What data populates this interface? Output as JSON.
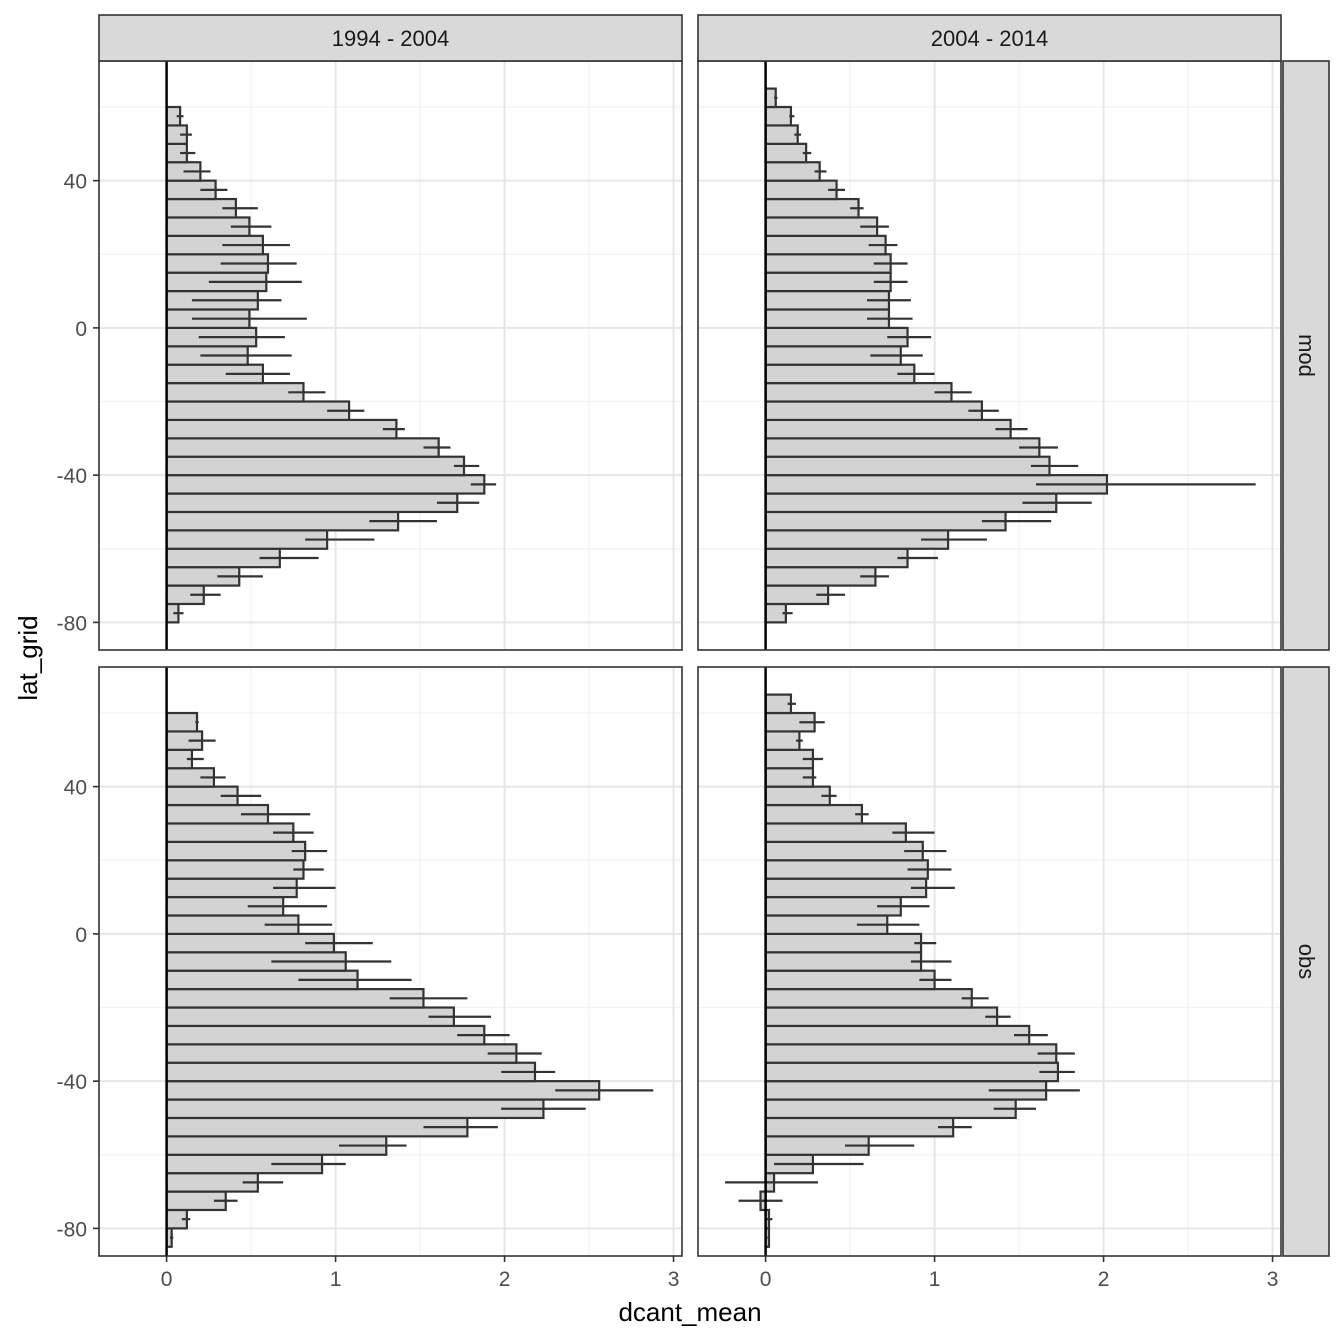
{
  "chart_data": {
    "type": "bar",
    "orientation": "horizontal",
    "facet_columns": [
      "1994 - 2004",
      "2004 - 2014"
    ],
    "facet_rows": [
      "mod",
      "obs"
    ],
    "xlabel": "dcant_mean",
    "ylabel": "lat_grid",
    "xlim": [
      -0.4,
      3.05
    ],
    "ylim": [
      -87.5,
      72.5
    ],
    "xticks": [
      "0",
      "1",
      "2",
      "3"
    ],
    "yticks": [
      "-80",
      "-40",
      "0",
      "40"
    ],
    "grid": true,
    "bar_fill": "#d3d3d3",
    "bar_outline": "#333333",
    "lat": [
      -82.5,
      -77.5,
      -72.5,
      -67.5,
      -62.5,
      -57.5,
      -52.5,
      -47.5,
      -42.5,
      -37.5,
      -32.5,
      -27.5,
      -22.5,
      -17.5,
      -12.5,
      -7.5,
      -2.5,
      2.5,
      7.5,
      12.5,
      17.5,
      22.5,
      27.5,
      32.5,
      37.5,
      42.5,
      47.5,
      52.5,
      57.5,
      62.5,
      67.5
    ],
    "panels": [
      {
        "column": "1994 - 2004",
        "row": "mod",
        "values": [
          0.0,
          0.07,
          0.22,
          0.43,
          0.67,
          0.95,
          1.37,
          1.72,
          1.88,
          1.76,
          1.61,
          1.36,
          1.08,
          0.81,
          0.57,
          0.48,
          0.53,
          0.49,
          0.54,
          0.59,
          0.6,
          0.57,
          0.49,
          0.41,
          0.29,
          0.2,
          0.12,
          0.12,
          0.08,
          0.0,
          0.0
        ],
        "err_low": [
          0.0,
          0.04,
          0.14,
          0.3,
          0.55,
          0.82,
          1.2,
          1.6,
          1.8,
          1.7,
          1.52,
          1.28,
          0.95,
          0.72,
          0.35,
          0.2,
          0.19,
          0.15,
          0.15,
          0.25,
          0.32,
          0.33,
          0.38,
          0.33,
          0.2,
          0.1,
          0.08,
          0.08,
          0.06,
          0.0,
          0.0
        ],
        "err_high": [
          0.0,
          0.1,
          0.32,
          0.57,
          0.9,
          1.23,
          1.6,
          1.85,
          1.95,
          1.85,
          1.68,
          1.41,
          1.17,
          0.94,
          0.73,
          0.74,
          0.7,
          0.83,
          0.68,
          0.8,
          0.77,
          0.73,
          0.62,
          0.54,
          0.36,
          0.26,
          0.17,
          0.15,
          0.1,
          0.0,
          0.0
        ]
      },
      {
        "column": "2004 - 2014",
        "row": "mod",
        "values": [
          0.0,
          0.12,
          0.37,
          0.65,
          0.84,
          1.08,
          1.42,
          1.72,
          2.02,
          1.68,
          1.62,
          1.45,
          1.28,
          1.1,
          0.88,
          0.8,
          0.84,
          0.73,
          0.73,
          0.74,
          0.74,
          0.71,
          0.66,
          0.55,
          0.42,
          0.32,
          0.24,
          0.19,
          0.15,
          0.06,
          0.0
        ],
        "err_low": [
          0.0,
          0.1,
          0.3,
          0.56,
          0.78,
          0.92,
          1.28,
          1.52,
          1.6,
          1.57,
          1.5,
          1.36,
          1.2,
          1.0,
          0.78,
          0.62,
          0.72,
          0.6,
          0.6,
          0.64,
          0.64,
          0.61,
          0.56,
          0.5,
          0.37,
          0.29,
          0.22,
          0.17,
          0.14,
          0.05,
          0.0
        ],
        "err_high": [
          0.0,
          0.16,
          0.47,
          0.73,
          1.02,
          1.31,
          1.69,
          1.93,
          2.9,
          1.85,
          1.73,
          1.55,
          1.38,
          1.22,
          1.0,
          0.93,
          0.98,
          0.87,
          0.86,
          0.84,
          0.84,
          0.78,
          0.73,
          0.58,
          0.47,
          0.36,
          0.27,
          0.21,
          0.17,
          0.07,
          0.0
        ]
      },
      {
        "column": "1994 - 2004",
        "row": "obs",
        "values": [
          0.03,
          0.12,
          0.35,
          0.54,
          0.92,
          1.3,
          1.78,
          2.23,
          2.56,
          2.18,
          2.07,
          1.88,
          1.7,
          1.52,
          1.13,
          1.06,
          0.99,
          0.78,
          0.69,
          0.77,
          0.81,
          0.82,
          0.75,
          0.6,
          0.42,
          0.28,
          0.15,
          0.21,
          0.18,
          0.0,
          0.0
        ],
        "err_low": [
          0.02,
          0.09,
          0.28,
          0.45,
          0.62,
          1.02,
          1.52,
          1.98,
          2.3,
          1.98,
          1.9,
          1.72,
          1.55,
          1.32,
          0.78,
          0.62,
          0.82,
          0.58,
          0.48,
          0.63,
          0.75,
          0.74,
          0.63,
          0.44,
          0.32,
          0.2,
          0.12,
          0.13,
          0.17,
          0.0,
          0.0
        ],
        "err_high": [
          0.04,
          0.14,
          0.42,
          0.69,
          1.06,
          1.42,
          1.96,
          2.48,
          2.88,
          2.3,
          2.22,
          2.03,
          1.92,
          1.78,
          1.45,
          1.33,
          1.22,
          0.98,
          0.95,
          1.0,
          0.93,
          0.95,
          0.87,
          0.85,
          0.56,
          0.35,
          0.22,
          0.29,
          0.19,
          0.0,
          0.0
        ]
      },
      {
        "column": "2004 - 2014",
        "row": "obs",
        "values": [
          0.02,
          0.02,
          -0.03,
          0.05,
          0.28,
          0.61,
          1.11,
          1.48,
          1.66,
          1.73,
          1.72,
          1.56,
          1.37,
          1.22,
          1.0,
          0.92,
          0.92,
          0.72,
          0.8,
          0.95,
          0.96,
          0.93,
          0.83,
          0.57,
          0.38,
          0.28,
          0.28,
          0.2,
          0.29,
          0.15,
          0.0
        ],
        "err_low": [
          0.01,
          0.0,
          -0.16,
          -0.24,
          0.05,
          0.47,
          1.02,
          1.35,
          1.32,
          1.62,
          1.61,
          1.47,
          1.3,
          1.16,
          0.91,
          0.86,
          0.88,
          0.54,
          0.66,
          0.86,
          0.84,
          0.82,
          0.75,
          0.53,
          0.33,
          0.22,
          0.22,
          0.18,
          0.2,
          0.13,
          0.0
        ],
        "err_high": [
          0.02,
          0.04,
          0.1,
          0.31,
          0.58,
          0.88,
          1.22,
          1.6,
          1.86,
          1.83,
          1.83,
          1.67,
          1.45,
          1.32,
          1.1,
          1.1,
          1.01,
          0.91,
          0.97,
          1.12,
          1.1,
          1.07,
          1.0,
          0.61,
          0.42,
          0.3,
          0.34,
          0.22,
          0.35,
          0.18,
          0.0
        ]
      }
    ]
  }
}
